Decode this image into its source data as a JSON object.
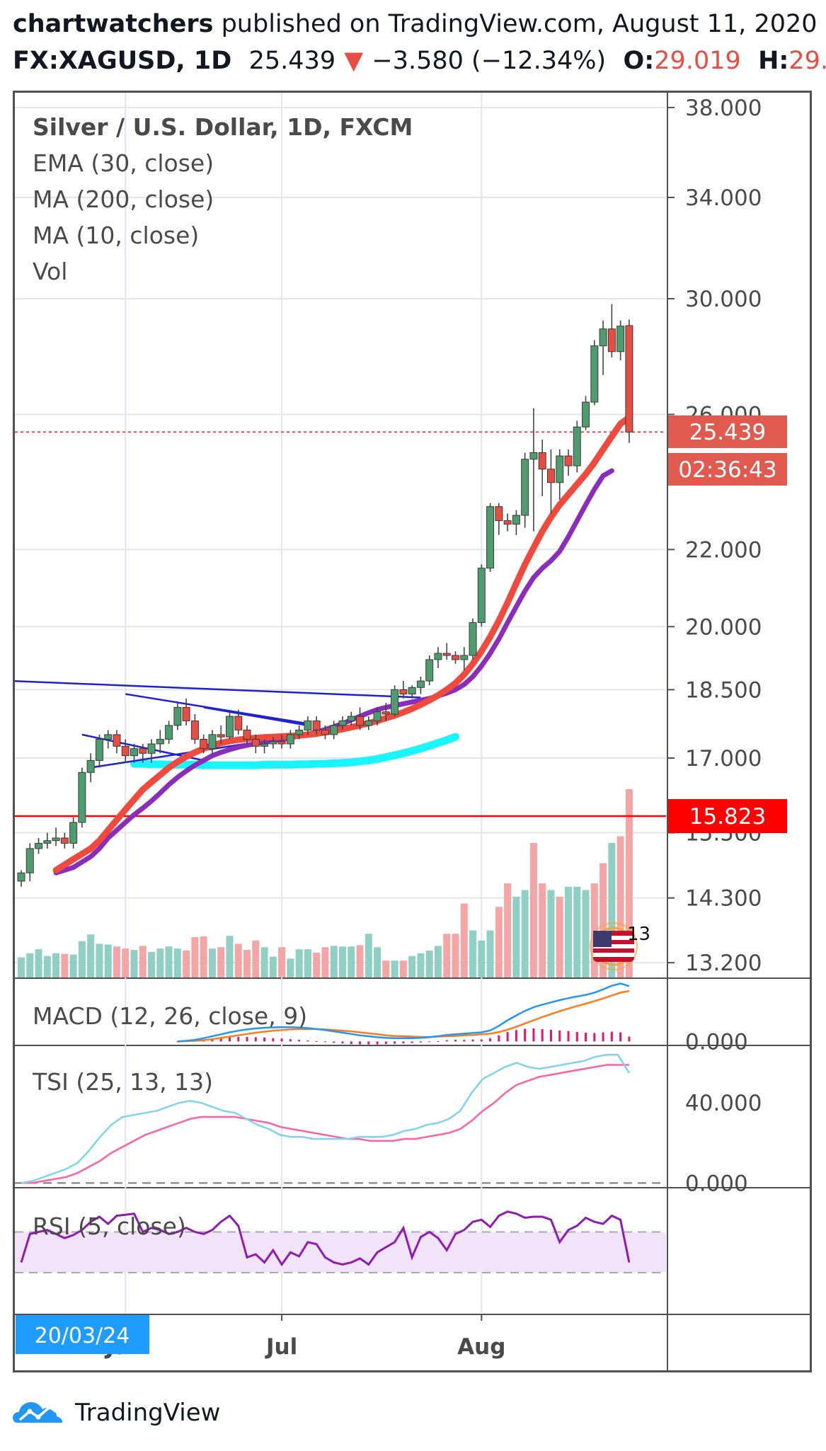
{
  "header": {
    "author": "chartwatchers",
    "published_text": " published on TradingView.com, August 11, 2020 20:",
    "symbol": "FX:XAGUSD, 1D",
    "last": "25.439",
    "down_arrow": "▼",
    "change": "−3.580 (−12.34%)",
    "open_label": "O:",
    "open": "29.019",
    "high_label": "H:",
    "high": "29.240",
    "low_label": "L:"
  },
  "legend": {
    "title": "Silver / U.S. Dollar, 1D, FXCM",
    "line1": "EMA (30, close)",
    "line2": "MA (200, close)",
    "line3": "MA (10, close)",
    "line4": "Vol"
  },
  "badges": {
    "price": "25.439",
    "countdown": "02:36:43",
    "level": "15.823",
    "flag_value": "13",
    "date": "20/03/24"
  },
  "footer": {
    "brand": "TradingView"
  },
  "colors": {
    "up": "#4f9d6e",
    "down": "#e84d41",
    "ema30": "#ef4a3d",
    "ma200": "#19f5ff",
    "ma10": "#8a2dbb",
    "trendline": "#1f1fd6",
    "level": "#ff0000",
    "vol_up": "#8fcfc4",
    "vol_down": "#f4a6a6",
    "macd": "#2196f3",
    "macd_signal": "#ff7a18",
    "tsi": "#7fd3ee",
    "tsi_signal": "#ff5fa5",
    "rsi": "#8c1db0",
    "rsi_band": "#f1e4fa"
  },
  "chart_data": [
    {
      "type": "candlestick",
      "title": "Silver / U.S. Dollar, 1D, FXCM",
      "x_tick_labels": [
        "Jun",
        "Jul",
        "Aug"
      ],
      "y_tick_labels": [
        "38.000",
        "34.000",
        "30.000",
        "26.000",
        "22.000",
        "20.000",
        "18.500",
        "17.000",
        "15.500",
        "14.300",
        "13.200"
      ],
      "y_scale": "log",
      "ylim": [
        13.0,
        38.6
      ],
      "last_price": 25.439,
      "horizontal_level": 15.823,
      "candles": [
        {
          "o": 14.6,
          "h": 14.8,
          "l": 14.5,
          "c": 14.75
        },
        {
          "o": 14.75,
          "h": 15.3,
          "l": 14.6,
          "c": 15.2
        },
        {
          "o": 15.2,
          "h": 15.4,
          "l": 15.1,
          "c": 15.3
        },
        {
          "o": 15.3,
          "h": 15.5,
          "l": 15.2,
          "c": 15.35
        },
        {
          "o": 15.35,
          "h": 15.6,
          "l": 15.25,
          "c": 15.4
        },
        {
          "o": 15.4,
          "h": 15.5,
          "l": 15.2,
          "c": 15.3
        },
        {
          "o": 15.3,
          "h": 15.8,
          "l": 15.2,
          "c": 15.7
        },
        {
          "o": 15.7,
          "h": 16.8,
          "l": 15.6,
          "c": 16.7
        },
        {
          "o": 16.7,
          "h": 17.1,
          "l": 16.5,
          "c": 16.95
        },
        {
          "o": 16.95,
          "h": 17.5,
          "l": 16.8,
          "c": 17.4
        },
        {
          "o": 17.4,
          "h": 17.6,
          "l": 17.2,
          "c": 17.5
        },
        {
          "o": 17.5,
          "h": 17.6,
          "l": 17.1,
          "c": 17.25
        },
        {
          "o": 17.25,
          "h": 17.4,
          "l": 16.9,
          "c": 17.05
        },
        {
          "o": 17.05,
          "h": 17.3,
          "l": 16.9,
          "c": 17.2
        },
        {
          "o": 17.2,
          "h": 17.3,
          "l": 16.9,
          "c": 17.1
        },
        {
          "o": 17.1,
          "h": 17.4,
          "l": 16.9,
          "c": 17.3
        },
        {
          "o": 17.3,
          "h": 17.6,
          "l": 17.1,
          "c": 17.4
        },
        {
          "o": 17.4,
          "h": 17.8,
          "l": 17.3,
          "c": 17.7
        },
        {
          "o": 17.7,
          "h": 18.2,
          "l": 17.6,
          "c": 18.1
        },
        {
          "o": 18.1,
          "h": 18.3,
          "l": 17.7,
          "c": 17.8
        },
        {
          "o": 17.8,
          "h": 17.95,
          "l": 17.3,
          "c": 17.4
        },
        {
          "o": 17.4,
          "h": 17.5,
          "l": 17.1,
          "c": 17.2
        },
        {
          "o": 17.2,
          "h": 17.6,
          "l": 17.1,
          "c": 17.5
        },
        {
          "o": 17.5,
          "h": 17.7,
          "l": 17.3,
          "c": 17.45
        },
        {
          "o": 17.45,
          "h": 18.0,
          "l": 17.4,
          "c": 17.9
        },
        {
          "o": 17.9,
          "h": 18.05,
          "l": 17.5,
          "c": 17.6
        },
        {
          "o": 17.6,
          "h": 17.7,
          "l": 17.3,
          "c": 17.4
        },
        {
          "o": 17.4,
          "h": 17.5,
          "l": 17.1,
          "c": 17.25
        },
        {
          "o": 17.25,
          "h": 17.4,
          "l": 17.1,
          "c": 17.3
        },
        {
          "o": 17.3,
          "h": 17.45,
          "l": 17.2,
          "c": 17.35
        },
        {
          "o": 17.35,
          "h": 17.5,
          "l": 17.2,
          "c": 17.3
        },
        {
          "o": 17.3,
          "h": 17.6,
          "l": 17.2,
          "c": 17.5
        },
        {
          "o": 17.5,
          "h": 17.7,
          "l": 17.4,
          "c": 17.6
        },
        {
          "o": 17.6,
          "h": 17.9,
          "l": 17.5,
          "c": 17.8
        },
        {
          "o": 17.8,
          "h": 17.9,
          "l": 17.5,
          "c": 17.6
        },
        {
          "o": 17.6,
          "h": 17.7,
          "l": 17.4,
          "c": 17.5
        },
        {
          "o": 17.5,
          "h": 17.8,
          "l": 17.4,
          "c": 17.7
        },
        {
          "o": 17.7,
          "h": 17.9,
          "l": 17.6,
          "c": 17.8
        },
        {
          "o": 17.8,
          "h": 18.0,
          "l": 17.7,
          "c": 17.9
        },
        {
          "o": 17.9,
          "h": 18.1,
          "l": 17.6,
          "c": 17.7
        },
        {
          "o": 17.7,
          "h": 17.9,
          "l": 17.6,
          "c": 17.8
        },
        {
          "o": 17.8,
          "h": 18.1,
          "l": 17.7,
          "c": 18.0
        },
        {
          "o": 18.0,
          "h": 18.2,
          "l": 17.8,
          "c": 17.95
        },
        {
          "o": 17.95,
          "h": 18.6,
          "l": 17.9,
          "c": 18.5
        },
        {
          "o": 18.5,
          "h": 18.7,
          "l": 18.3,
          "c": 18.4
        },
        {
          "o": 18.4,
          "h": 18.6,
          "l": 18.3,
          "c": 18.55
        },
        {
          "o": 18.55,
          "h": 18.8,
          "l": 18.4,
          "c": 18.7
        },
        {
          "o": 18.7,
          "h": 19.3,
          "l": 18.6,
          "c": 19.2
        },
        {
          "o": 19.2,
          "h": 19.5,
          "l": 19.0,
          "c": 19.35
        },
        {
          "o": 19.35,
          "h": 19.6,
          "l": 19.2,
          "c": 19.3
        },
        {
          "o": 19.3,
          "h": 19.4,
          "l": 19.1,
          "c": 19.2
        },
        {
          "o": 19.2,
          "h": 19.5,
          "l": 18.95,
          "c": 19.3
        },
        {
          "o": 19.3,
          "h": 20.2,
          "l": 19.2,
          "c": 20.1
        },
        {
          "o": 20.1,
          "h": 21.6,
          "l": 20.0,
          "c": 21.5
        },
        {
          "o": 21.5,
          "h": 23.3,
          "l": 21.4,
          "c": 23.2
        },
        {
          "o": 23.2,
          "h": 23.3,
          "l": 22.4,
          "c": 22.8
        },
        {
          "o": 22.8,
          "h": 23.0,
          "l": 22.5,
          "c": 22.7
        },
        {
          "o": 22.7,
          "h": 23.1,
          "l": 22.4,
          "c": 22.95
        },
        {
          "o": 22.95,
          "h": 24.8,
          "l": 22.6,
          "c": 24.6
        },
        {
          "o": 24.6,
          "h": 26.2,
          "l": 22.5,
          "c": 24.8
        },
        {
          "o": 24.8,
          "h": 25.2,
          "l": 23.5,
          "c": 24.3
        },
        {
          "o": 24.3,
          "h": 24.9,
          "l": 23.0,
          "c": 23.9
        },
        {
          "o": 23.9,
          "h": 24.9,
          "l": 23.4,
          "c": 24.7
        },
        {
          "o": 24.7,
          "h": 24.9,
          "l": 24.1,
          "c": 24.4
        },
        {
          "o": 24.4,
          "h": 25.8,
          "l": 24.2,
          "c": 25.6
        },
        {
          "o": 25.6,
          "h": 26.6,
          "l": 25.5,
          "c": 26.4
        },
        {
          "o": 26.4,
          "h": 28.5,
          "l": 26.3,
          "c": 28.3
        },
        {
          "o": 28.3,
          "h": 29.2,
          "l": 27.3,
          "c": 28.9
        },
        {
          "o": 28.9,
          "h": 29.8,
          "l": 27.9,
          "c": 28.1
        },
        {
          "o": 28.1,
          "h": 29.2,
          "l": 27.8,
          "c": 29.0
        },
        {
          "o": 29.019,
          "h": 29.24,
          "l": 25.1,
          "c": 25.439
        }
      ],
      "ema30": [
        14.8,
        14.9,
        15.0,
        15.1,
        15.2,
        15.35,
        15.55,
        15.75,
        15.95,
        16.15,
        16.35,
        16.5,
        16.65,
        16.8,
        16.92,
        17.03,
        17.12,
        17.2,
        17.27,
        17.32,
        17.36,
        17.39,
        17.41,
        17.43,
        17.44,
        17.45,
        17.46,
        17.47,
        17.48,
        17.5,
        17.52,
        17.55,
        17.58,
        17.62,
        17.66,
        17.7,
        17.75,
        17.8,
        17.86,
        17.92,
        17.99,
        18.07,
        18.16,
        18.26,
        18.37,
        18.5,
        18.65,
        18.85,
        19.1,
        19.4,
        19.75,
        20.15,
        20.6,
        21.1,
        21.6,
        22.05,
        22.5,
        22.9,
        23.25,
        23.55,
        23.85,
        24.15,
        24.5,
        24.9,
        25.3,
        25.7,
        25.9
      ],
      "ma200": [
        16.88,
        16.88,
        16.87,
        16.87,
        16.86,
        16.86,
        16.86,
        16.86,
        16.85,
        16.85,
        16.85,
        16.85,
        16.85,
        16.85,
        16.85,
        16.86,
        16.86,
        16.86,
        16.86,
        16.87,
        16.87,
        16.88,
        16.88,
        16.89,
        16.9,
        16.91,
        16.93,
        16.95,
        16.98,
        17.02,
        17.06,
        17.1,
        17.15,
        17.2,
        17.26,
        17.32,
        17.38,
        17.45
      ],
      "ma10": [
        14.75,
        14.8,
        14.85,
        14.95,
        15.05,
        15.2,
        15.4,
        15.55,
        15.7,
        15.85,
        15.98,
        16.12,
        16.28,
        16.45,
        16.6,
        16.73,
        16.85,
        16.95,
        17.05,
        17.12,
        17.18,
        17.23,
        17.27,
        17.31,
        17.34,
        17.37,
        17.4,
        17.43,
        17.47,
        17.51,
        17.56,
        17.61,
        17.67,
        17.74,
        17.82,
        17.9,
        17.98,
        18.05,
        18.1,
        18.14,
        18.18,
        18.22,
        18.26,
        18.3,
        18.36,
        18.42,
        18.5,
        18.62,
        18.8,
        19.05,
        19.35,
        19.7,
        20.1,
        20.5,
        20.9,
        21.25,
        21.5,
        21.7,
        21.95,
        22.35,
        22.8,
        23.25,
        23.7,
        24.1,
        24.25
      ],
      "volume_up": [
        true,
        true,
        true,
        true,
        true,
        false,
        true,
        true,
        true,
        true,
        true,
        false,
        false,
        true,
        false,
        true,
        true,
        true,
        true,
        false,
        false,
        false,
        true,
        false,
        true,
        false,
        false,
        false,
        true,
        true,
        false,
        true,
        true,
        true,
        false,
        false,
        true,
        true,
        true,
        false,
        true,
        true,
        false,
        true,
        false,
        true,
        true,
        true,
        true,
        false,
        false,
        false,
        true,
        true,
        true,
        false,
        false,
        true,
        true,
        false,
        false,
        true,
        false,
        true,
        true,
        true,
        false,
        false,
        true,
        false,
        false
      ],
      "volume": [
        3.0,
        3.6,
        4.2,
        3.2,
        3.6,
        3.5,
        3.4,
        5.4,
        6.4,
        5.0,
        4.9,
        4.6,
        4.3,
        4.1,
        4.7,
        3.8,
        4.3,
        4.6,
        4.3,
        4.0,
        6.0,
        6.1,
        4.3,
        4.5,
        6.2,
        5.0,
        4.1,
        5.5,
        4.5,
        3.1,
        4.5,
        2.8,
        4.2,
        4.2,
        3.7,
        4.5,
        4.7,
        4.6,
        4.6,
        4.8,
        6.5,
        4.5,
        2.5,
        2.5,
        2.5,
        3.2,
        3.6,
        4.0,
        4.7,
        6.5,
        6.5,
        11.0,
        7.0,
        5.5,
        7.0,
        10.5,
        14.0,
        12.0,
        13.0,
        20.0,
        14.0,
        13.0,
        12.0,
        13.5,
        13.5,
        13.0,
        14.0,
        17.0,
        20.0,
        21.0,
        28.0
      ],
      "volume_ylim": [
        0,
        40
      ]
    },
    {
      "type": "line",
      "title": "MACD (12, 26, close, 9)",
      "y_tick_labels": [
        "0.000"
      ],
      "ylim": [
        -0.1,
        1.9
      ],
      "macd": [
        0.0,
        0.02,
        0.05,
        0.1,
        0.16,
        0.22,
        0.28,
        0.33,
        0.37,
        0.4,
        0.42,
        0.43,
        0.44,
        0.44,
        0.43,
        0.41,
        0.38,
        0.35,
        0.31,
        0.27,
        0.23,
        0.19,
        0.16,
        0.13,
        0.11,
        0.1,
        0.1,
        0.1,
        0.11,
        0.13,
        0.16,
        0.2,
        0.22,
        0.24,
        0.26,
        0.28,
        0.34,
        0.48,
        0.65,
        0.8,
        0.94,
        1.05,
        1.13,
        1.2,
        1.27,
        1.33,
        1.38,
        1.43,
        1.5,
        1.6,
        1.71,
        1.78,
        1.7
      ],
      "signal": [
        0.0,
        0.01,
        0.02,
        0.04,
        0.07,
        0.11,
        0.15,
        0.19,
        0.23,
        0.27,
        0.3,
        0.33,
        0.35,
        0.37,
        0.38,
        0.38,
        0.38,
        0.37,
        0.35,
        0.33,
        0.31,
        0.28,
        0.25,
        0.22,
        0.19,
        0.17,
        0.16,
        0.15,
        0.14,
        0.14,
        0.15,
        0.16,
        0.17,
        0.19,
        0.2,
        0.22,
        0.24,
        0.29,
        0.36,
        0.45,
        0.55,
        0.65,
        0.75,
        0.84,
        0.93,
        1.01,
        1.09,
        1.16,
        1.24,
        1.32,
        1.41,
        1.5,
        1.55
      ],
      "histogram": [
        0.0,
        0.02,
        0.03,
        0.06,
        0.09,
        0.11,
        0.13,
        0.14,
        0.14,
        0.13,
        0.12,
        0.1,
        0.09,
        0.07,
        0.05,
        0.03,
        0.01,
        -0.02,
        -0.04,
        -0.06,
        -0.08,
        -0.09,
        -0.09,
        -0.09,
        -0.08,
        -0.07,
        -0.06,
        -0.05,
        -0.03,
        -0.01,
        0.01,
        0.04,
        0.05,
        0.05,
        0.06,
        0.06,
        0.1,
        0.19,
        0.29,
        0.35,
        0.39,
        0.4,
        0.38,
        0.36,
        0.34,
        0.32,
        0.29,
        0.27,
        0.26,
        0.28,
        0.3,
        0.28,
        0.15
      ]
    },
    {
      "type": "line",
      "title": "TSI (25, 13, 13)",
      "y_tick_labels": [
        "40.000",
        "0.000"
      ],
      "ylim": [
        -2,
        68
      ],
      "tsi": [
        0,
        1,
        3,
        5,
        7,
        10,
        16,
        23,
        29,
        33,
        34,
        35,
        36,
        38,
        40,
        41,
        40,
        38,
        36,
        35,
        32,
        29,
        27,
        24,
        23,
        23,
        22,
        22,
        22,
        22,
        23,
        23,
        23,
        24,
        26,
        27,
        29,
        30,
        32,
        36,
        45,
        52,
        55,
        58,
        60,
        58,
        57,
        58,
        59,
        60,
        61,
        63,
        64,
        64,
        55
      ],
      "signal": [
        0,
        0,
        1,
        2,
        3,
        5,
        8,
        11,
        15,
        18,
        21,
        24,
        26,
        28,
        30,
        32,
        33,
        33,
        33,
        33,
        32,
        31,
        30,
        28,
        27,
        26,
        25,
        24,
        23,
        22,
        22,
        21,
        21,
        21,
        22,
        22,
        23,
        24,
        25,
        27,
        31,
        36,
        40,
        45,
        49,
        51,
        53,
        54,
        55,
        56,
        57,
        58,
        59,
        59,
        59
      ]
    },
    {
      "type": "line",
      "title": "RSI (5, close)",
      "ylim": [
        0,
        100
      ],
      "band": [
        30,
        70
      ],
      "rsi": [
        40,
        68,
        70,
        72,
        68,
        64,
        67,
        72,
        80,
        85,
        78,
        86,
        87,
        88,
        70,
        74,
        72,
        68,
        70,
        74,
        70,
        68,
        72,
        80,
        86,
        76,
        45,
        48,
        40,
        52,
        38,
        50,
        46,
        60,
        58,
        45,
        40,
        38,
        40,
        44,
        38,
        50,
        55,
        60,
        74,
        45,
        65,
        70,
        64,
        52,
        68,
        72,
        80,
        82,
        75,
        86,
        90,
        88,
        84,
        85,
        85,
        82,
        60,
        72,
        76,
        84,
        80,
        78,
        86,
        82,
        40
      ]
    }
  ]
}
